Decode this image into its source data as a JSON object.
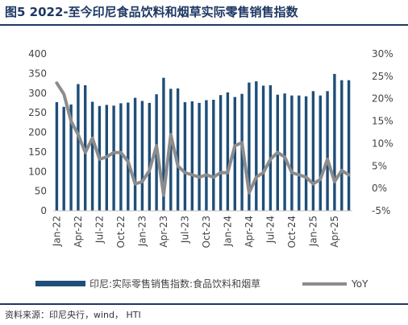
{
  "title": "图5  2022-至今印尼食品饮料和烟草实际零售销售指数",
  "source": "资料来源：印尼央行，wind， HTI",
  "colors": {
    "bar": "#1f4e79",
    "line": "#8c8c8c",
    "title": "#1f3864"
  },
  "chart_data": {
    "type": "bar",
    "title": "2022-至今印尼食品饮料和烟草实际零售销售指数",
    "ylim": [
      0,
      400
    ],
    "y2lim": [
      -5,
      30
    ],
    "yticks": [
      "0",
      "50",
      "100",
      "150",
      "200",
      "250",
      "300",
      "350",
      "400"
    ],
    "y2ticks": [
      "-5%",
      "0%",
      "5%",
      "10%",
      "15%",
      "20%",
      "25%",
      "30%"
    ],
    "xticklabels": [
      "Jan-22",
      "Apr-22",
      "Jul-22",
      "Oct-22",
      "Jan-23",
      "Apr-23",
      "Jul-23",
      "Oct-23",
      "Jan-24",
      "Apr-24",
      "Jul-24",
      "Oct-24",
      "Jan-25",
      "Apr-25"
    ],
    "categories": [
      "Jan-22",
      "Feb-22",
      "Mar-22",
      "Apr-22",
      "May-22",
      "Jun-22",
      "Jul-22",
      "Aug-22",
      "Sep-22",
      "Oct-22",
      "Nov-22",
      "Dec-22",
      "Jan-23",
      "Feb-23",
      "Mar-23",
      "Apr-23",
      "May-23",
      "Jun-23",
      "Jul-23",
      "Aug-23",
      "Sep-23",
      "Oct-23",
      "Nov-23",
      "Dec-23",
      "Jan-24",
      "Feb-24",
      "Mar-24",
      "Apr-24",
      "May-24",
      "Jun-24",
      "Jul-24",
      "Aug-24",
      "Sep-24",
      "Oct-24",
      "Nov-24",
      "Dec-24",
      "Jan-25",
      "Feb-25",
      "Mar-25",
      "Apr-25",
      "May-25",
      "Jun-25"
    ],
    "series": [
      {
        "name": "印尼:实际零售销售指数:食品饮料和烟草",
        "type": "bar",
        "axis": "left",
        "values": [
          277,
          265,
          271,
          323,
          320,
          278,
          267,
          270,
          268,
          274,
          276,
          288,
          280,
          275,
          297,
          339,
          311,
          312,
          277,
          279,
          275,
          282,
          283,
          295,
          302,
          290,
          298,
          327,
          330,
          319,
          320,
          296,
          299,
          294,
          294,
          292,
          305,
          294,
          305,
          349,
          333,
          333
        ]
      },
      {
        "name": "YoY",
        "type": "line",
        "axis": "right",
        "values": [
          23.5,
          21,
          15,
          12,
          8,
          11.2,
          6.5,
          7,
          8,
          8,
          6,
          1,
          1.5,
          4,
          9.5,
          -1.5,
          12,
          5,
          3.5,
          3,
          2.5,
          3,
          2.5,
          3.5,
          3.5,
          9.5,
          10.2,
          -1,
          2.5,
          3.5,
          6.5,
          8,
          7,
          3.5,
          3,
          2.5,
          1,
          2,
          6.5,
          1.5,
          4,
          3
        ]
      }
    ],
    "grid": false,
    "legend_position": "bottom"
  }
}
